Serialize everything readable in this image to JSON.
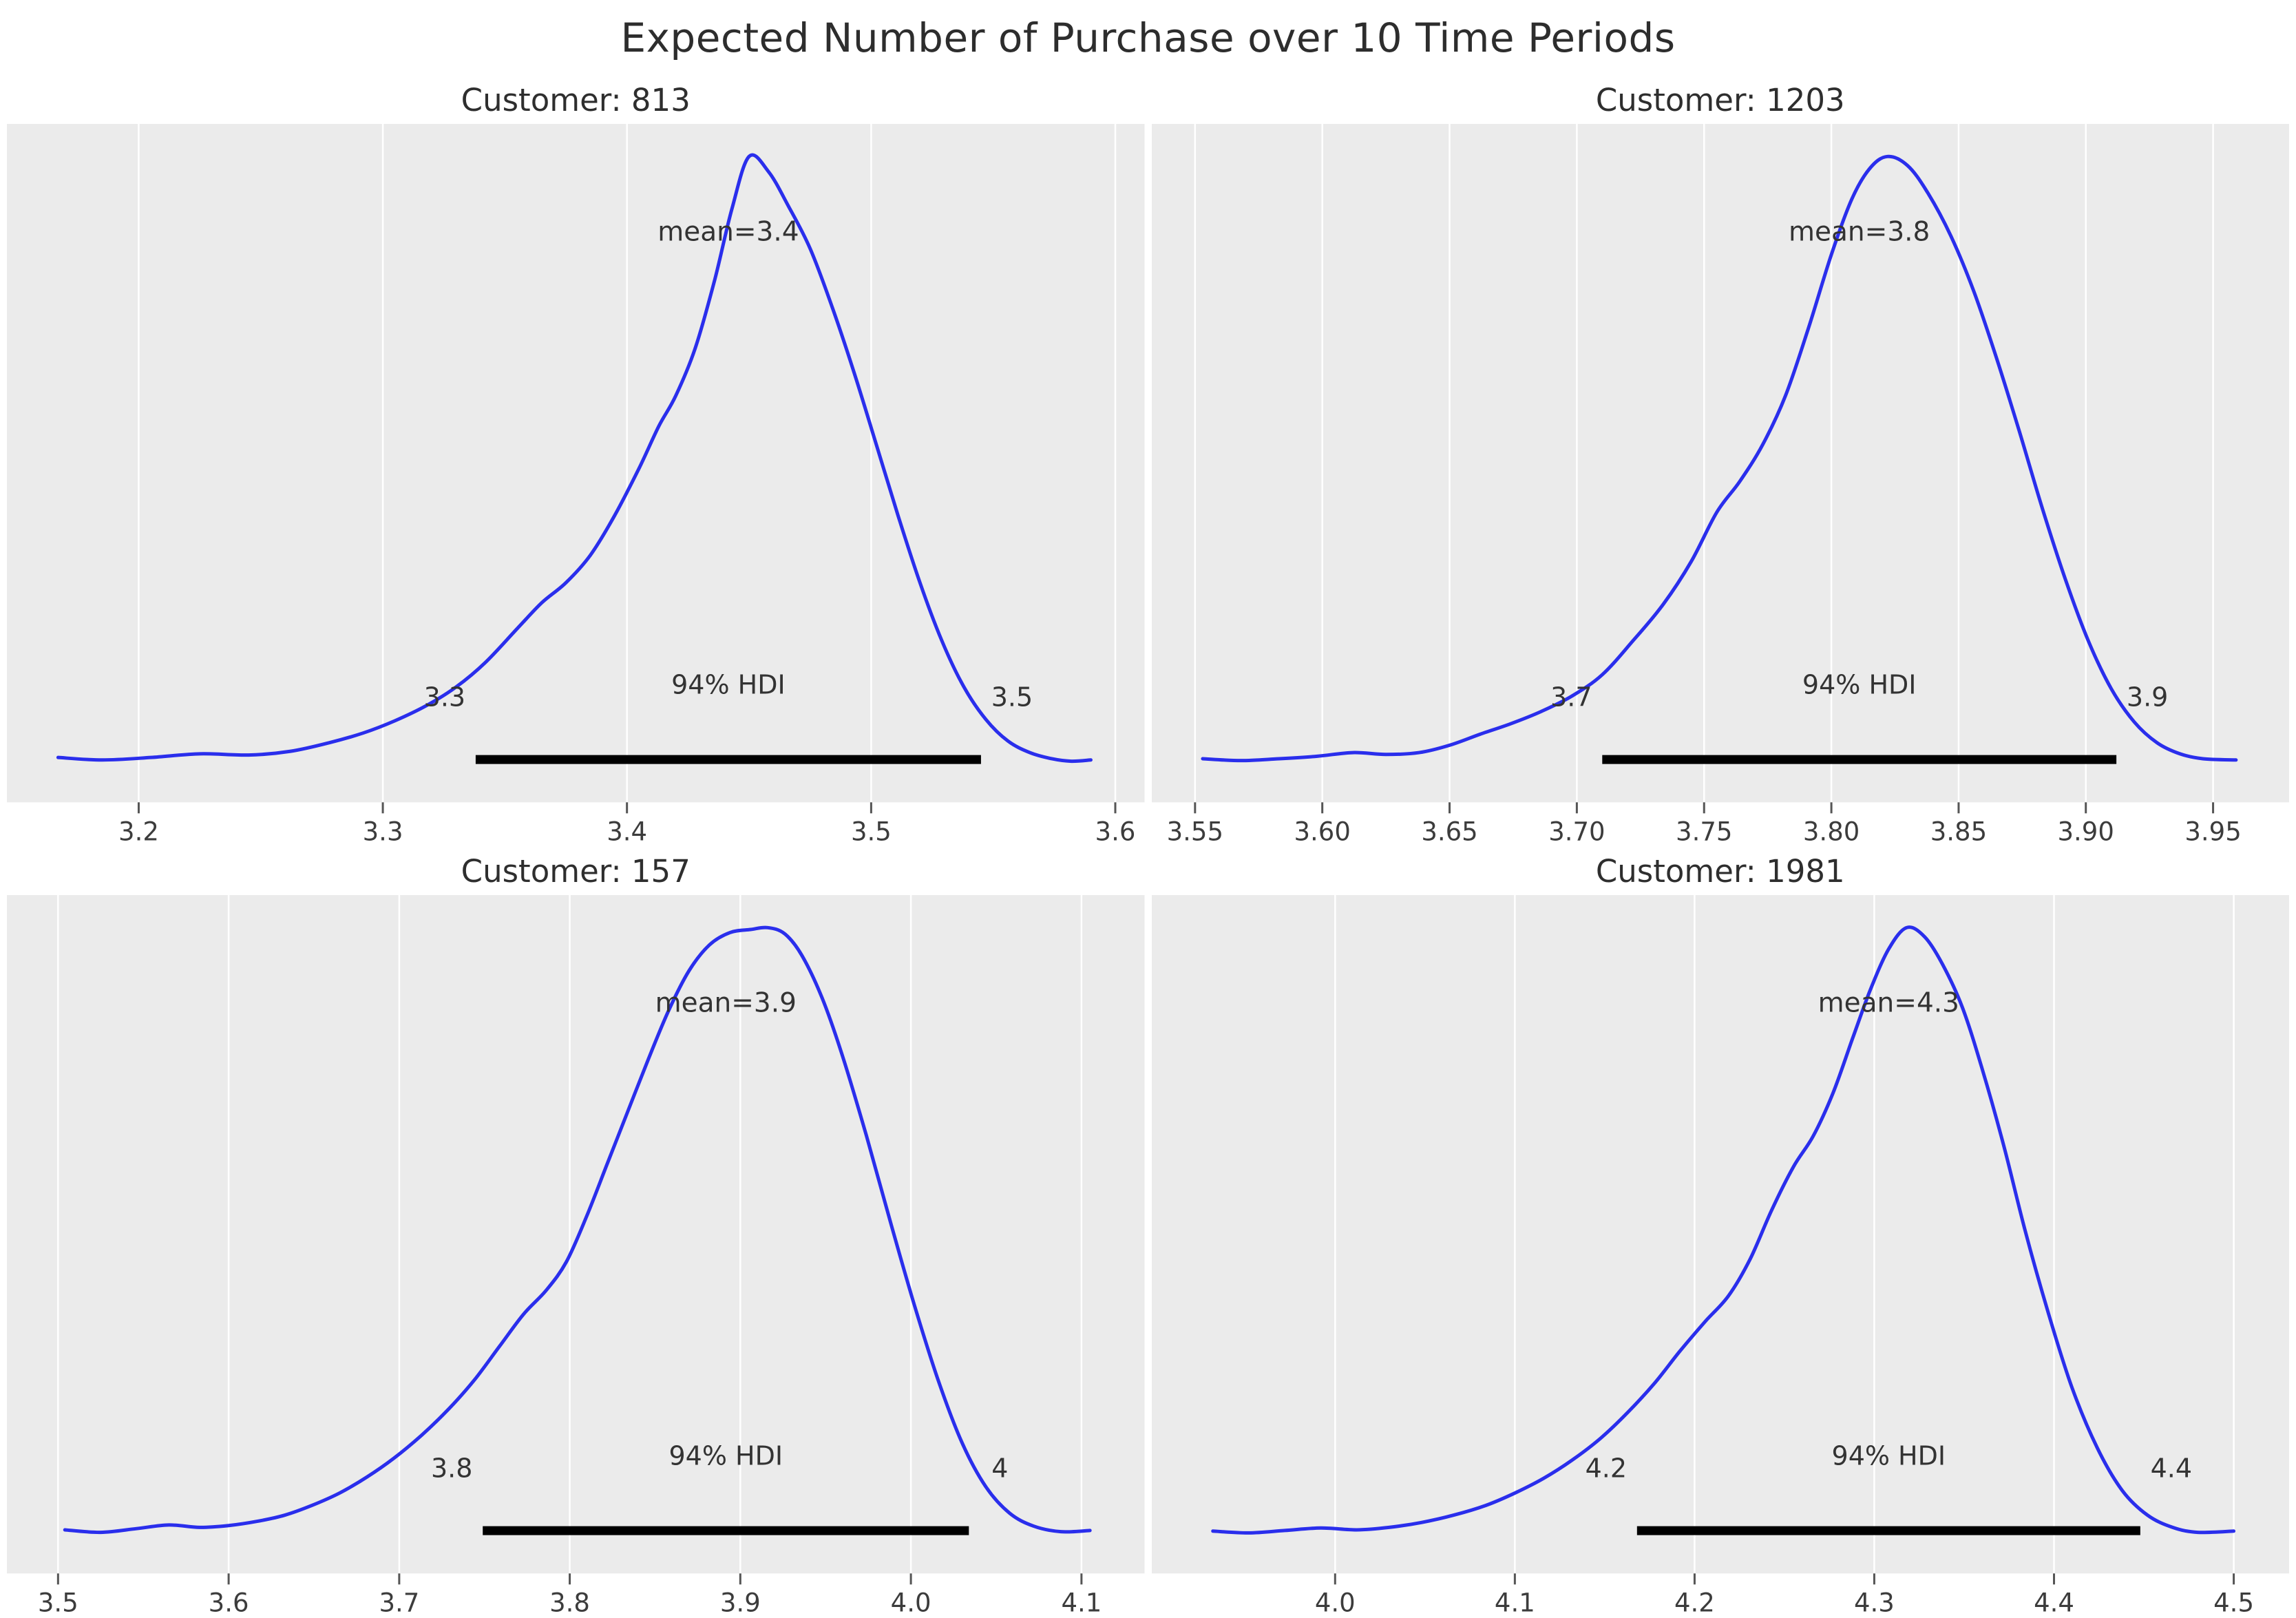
{
  "figure": {
    "title": "Expected Number of Purchase over 10 Time Periods"
  },
  "style": {
    "curve_color": "#2a2eec",
    "axes_bg": "#ebebeb",
    "grid_color": "#ffffff",
    "hdi_bar_color": "#000000",
    "annotation_color": "#333333",
    "tick_color": "#555555",
    "tick_label_color": "#3c3c3c"
  },
  "chart_data": [
    {
      "type": "line",
      "title": "Customer: 813",
      "mean": 3.4,
      "mean_label": "mean=3.4",
      "hdi_text": "94% HDI",
      "hdi_lower_label": "3.3",
      "hdi_upper_label": "3.5",
      "hdi_interval": [
        3.338,
        3.545
      ],
      "xlim": [
        3.146,
        3.612
      ],
      "x_ticks": [
        3.2,
        3.3,
        3.4,
        3.5,
        3.6
      ],
      "x_tick_labels": [
        "3.2",
        "3.3",
        "3.4",
        "3.5",
        "3.6"
      ],
      "kde": {
        "x": [
          3.167,
          3.185,
          3.205,
          3.225,
          3.245,
          3.262,
          3.278,
          3.292,
          3.305,
          3.318,
          3.33,
          3.342,
          3.355,
          3.365,
          3.375,
          3.385,
          3.395,
          3.405,
          3.413,
          3.42,
          3.428,
          3.436,
          3.443,
          3.45,
          3.458,
          3.466,
          3.475,
          3.484,
          3.493,
          3.502,
          3.511,
          3.52,
          3.529,
          3.538,
          3.547,
          3.556,
          3.565,
          3.574,
          3.582,
          3.59
        ],
        "density": [
          0.02,
          0.016,
          0.02,
          0.026,
          0.024,
          0.03,
          0.044,
          0.06,
          0.08,
          0.105,
          0.135,
          0.175,
          0.23,
          0.272,
          0.305,
          0.35,
          0.415,
          0.492,
          0.56,
          0.61,
          0.688,
          0.8,
          0.915,
          1.0,
          0.975,
          0.92,
          0.85,
          0.755,
          0.648,
          0.532,
          0.415,
          0.305,
          0.21,
          0.135,
          0.082,
          0.047,
          0.028,
          0.018,
          0.014,
          0.016
        ]
      }
    },
    {
      "type": "line",
      "title": "Customer: 1203",
      "mean": 3.8,
      "mean_label": "mean=3.8",
      "hdi_text": "94% HDI",
      "hdi_lower_label": "3.7",
      "hdi_upper_label": "3.9",
      "hdi_interval": [
        3.71,
        3.912
      ],
      "xlim": [
        3.533,
        3.98
      ],
      "x_ticks": [
        3.55,
        3.6,
        3.65,
        3.7,
        3.75,
        3.8,
        3.85,
        3.9,
        3.95
      ],
      "x_tick_labels": [
        "3.55",
        "3.60",
        "3.65",
        "3.70",
        "3.75",
        "3.80",
        "3.85",
        "3.90",
        "3.95"
      ],
      "kde": {
        "x": [
          3.553,
          3.568,
          3.583,
          3.598,
          3.612,
          3.625,
          3.638,
          3.65,
          3.662,
          3.674,
          3.686,
          3.698,
          3.71,
          3.722,
          3.734,
          3.745,
          3.755,
          3.764,
          3.773,
          3.782,
          3.791,
          3.8,
          3.808,
          3.815,
          3.822,
          3.83,
          3.838,
          3.847,
          3.856,
          3.865,
          3.874,
          3.883,
          3.892,
          3.901,
          3.91,
          3.919,
          3.928,
          3.937,
          3.946,
          3.959
        ],
        "density": [
          0.018,
          0.015,
          0.018,
          0.022,
          0.028,
          0.025,
          0.028,
          0.04,
          0.058,
          0.075,
          0.095,
          0.12,
          0.155,
          0.21,
          0.27,
          0.34,
          0.42,
          0.47,
          0.53,
          0.61,
          0.72,
          0.84,
          0.93,
          0.98,
          1.0,
          0.985,
          0.94,
          0.87,
          0.78,
          0.67,
          0.55,
          0.425,
          0.31,
          0.21,
          0.132,
          0.078,
          0.044,
          0.026,
          0.018,
          0.016
        ]
      }
    },
    {
      "type": "line",
      "title": "Customer: 157",
      "mean": 3.9,
      "mean_label": "mean=3.9",
      "hdi_text": "94% HDI",
      "hdi_lower_label": "3.8",
      "hdi_upper_label": "4",
      "hdi_interval": [
        3.749,
        4.034
      ],
      "xlim": [
        3.47,
        4.137
      ],
      "x_ticks": [
        3.5,
        3.6,
        3.7,
        3.8,
        3.9,
        4.0,
        4.1
      ],
      "x_tick_labels": [
        "3.5",
        "3.6",
        "3.7",
        "3.8",
        "3.9",
        "4.0",
        "4.1"
      ],
      "kde": {
        "x": [
          3.504,
          3.525,
          3.546,
          3.565,
          3.583,
          3.6,
          3.617,
          3.633,
          3.649,
          3.665,
          3.681,
          3.697,
          3.713,
          3.729,
          3.744,
          3.759,
          3.773,
          3.786,
          3.798,
          3.81,
          3.822,
          3.834,
          3.846,
          3.858,
          3.87,
          3.882,
          3.894,
          3.906,
          3.916,
          3.926,
          3.936,
          3.948,
          3.96,
          3.974,
          3.988,
          4.002,
          4.016,
          4.03,
          4.044,
          4.058,
          4.072,
          4.088,
          4.105
        ],
        "density": [
          0.018,
          0.014,
          0.02,
          0.026,
          0.022,
          0.025,
          0.032,
          0.042,
          0.058,
          0.078,
          0.104,
          0.135,
          0.172,
          0.215,
          0.262,
          0.318,
          0.37,
          0.408,
          0.455,
          0.53,
          0.615,
          0.7,
          0.785,
          0.865,
          0.93,
          0.972,
          0.992,
          0.997,
          1.0,
          0.99,
          0.955,
          0.885,
          0.79,
          0.66,
          0.52,
          0.385,
          0.262,
          0.16,
          0.088,
          0.045,
          0.024,
          0.015,
          0.017
        ]
      }
    },
    {
      "type": "line",
      "title": "Customer: 1981",
      "mean": 4.3,
      "mean_label": "mean=4.3",
      "hdi_text": "94% HDI",
      "hdi_lower_label": "4.2",
      "hdi_upper_label": "4.4",
      "hdi_interval": [
        4.168,
        4.448
      ],
      "xlim": [
        3.898,
        4.531
      ],
      "x_ticks": [
        4.0,
        4.1,
        4.2,
        4.3,
        4.4,
        4.5
      ],
      "x_tick_labels": [
        "4.0",
        "4.1",
        "4.2",
        "4.3",
        "4.4",
        "4.5"
      ],
      "kde": {
        "x": [
          3.932,
          3.952,
          3.972,
          3.992,
          4.012,
          4.03,
          4.048,
          4.066,
          4.084,
          4.1,
          4.116,
          4.132,
          4.148,
          4.163,
          4.178,
          4.192,
          4.206,
          4.219,
          4.231,
          4.243,
          4.255,
          4.266,
          4.277,
          4.288,
          4.298,
          4.308,
          4.318,
          4.328,
          4.338,
          4.349,
          4.36,
          4.372,
          4.384,
          4.397,
          4.41,
          4.424,
          4.438,
          4.452,
          4.466,
          4.48,
          4.5
        ],
        "density": [
          0.016,
          0.013,
          0.017,
          0.021,
          0.018,
          0.022,
          0.03,
          0.042,
          0.058,
          0.078,
          0.102,
          0.132,
          0.168,
          0.21,
          0.258,
          0.31,
          0.358,
          0.4,
          0.46,
          0.54,
          0.61,
          0.66,
          0.73,
          0.82,
          0.9,
          0.965,
          1.0,
          0.985,
          0.94,
          0.87,
          0.77,
          0.645,
          0.505,
          0.37,
          0.25,
          0.152,
          0.082,
          0.042,
          0.022,
          0.014,
          0.016
        ]
      }
    }
  ]
}
